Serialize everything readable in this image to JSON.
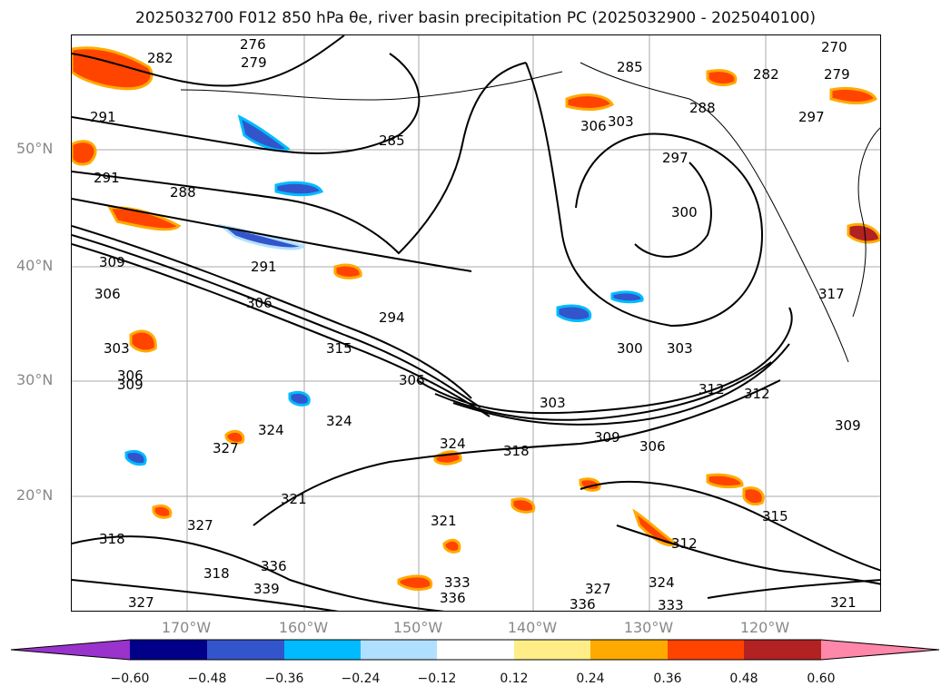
{
  "title": "2025032700 F012 850 hPa θe, river basin precipitation PC (2025032900 - 2025040100)",
  "latitudes": [
    "50°N",
    "40°N",
    "30°N",
    "20°N"
  ],
  "longitudes": [
    "170°W",
    "160°W",
    "150°W",
    "140°W",
    "130°W",
    "120°W"
  ],
  "contour_labels": [
    "276",
    "279",
    "282",
    "282",
    "279",
    "270",
    "291",
    "291",
    "288",
    "285",
    "285",
    "288",
    "297",
    "306",
    "303",
    "297",
    "300",
    "291",
    "309",
    "306",
    "306",
    "303",
    "294",
    "315",
    "306",
    "303",
    "300",
    "309",
    "306",
    "303",
    "312",
    "312",
    "309",
    "306",
    "309",
    "324",
    "324",
    "327",
    "324",
    "318",
    "321",
    "327",
    "321",
    "318",
    "318",
    "336",
    "339",
    "327",
    "336",
    "333",
    "336",
    "327",
    "324",
    "333",
    "312",
    "315",
    "321",
    "317"
  ],
  "colorbar": {
    "ticks": [
      "−0.60",
      "−0.48",
      "−0.36",
      "−0.24",
      "−0.12",
      "0.12",
      "0.24",
      "0.36",
      "0.48",
      "0.60"
    ],
    "colors": [
      "#9933cc",
      "#000088",
      "#3355cc",
      "#00bbff",
      "#b0e0ff",
      "#ffffff",
      "#ffee88",
      "#ffaa00",
      "#ff4400",
      "#b22222",
      "#ff88aa"
    ]
  }
}
